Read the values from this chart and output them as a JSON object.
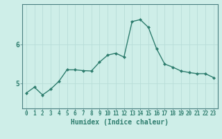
{
  "x": [
    0,
    1,
    2,
    3,
    4,
    5,
    6,
    7,
    8,
    9,
    10,
    11,
    12,
    13,
    14,
    15,
    16,
    17,
    18,
    19,
    20,
    21,
    22,
    23
  ],
  "y": [
    4.75,
    4.9,
    4.7,
    4.85,
    5.05,
    5.35,
    5.35,
    5.33,
    5.32,
    5.55,
    5.73,
    5.78,
    5.68,
    6.6,
    6.65,
    6.45,
    5.9,
    5.5,
    5.42,
    5.32,
    5.28,
    5.25,
    5.25,
    5.15
  ],
  "line_color": "#2e7d6e",
  "marker": "D",
  "markersize": 2.0,
  "linewidth": 1.0,
  "xlabel": "Humidex (Indice chaleur)",
  "xlabel_fontsize": 7,
  "ytick_labels": [
    "5",
    "6"
  ],
  "ytick_vals": [
    5,
    6
  ],
  "ylim": [
    4.35,
    7.05
  ],
  "xlim": [
    -0.5,
    23.5
  ],
  "bg_color": "#ceeee8",
  "grid_color": "#b8ddd8",
  "axis_color": "#4a8080",
  "tick_color": "#2e7d6e",
  "tick_fontsize": 5.5,
  "xlabel_color": "#2e7d6e"
}
